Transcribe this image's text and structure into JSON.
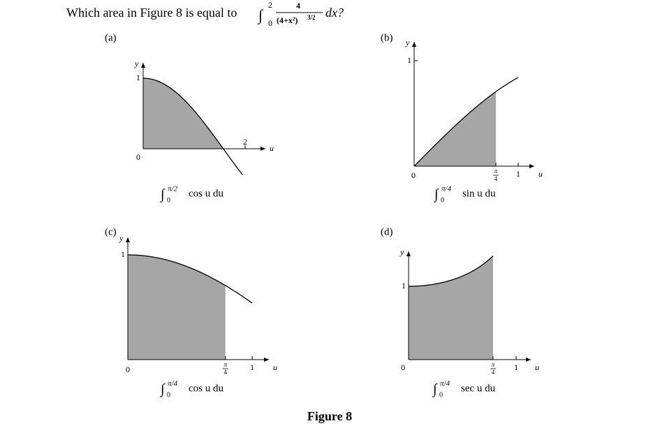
{
  "question": {
    "text": "Which area in Figure 8 is equal to",
    "integral": {
      "sign": "∫",
      "lower": "0",
      "upper": "2",
      "numerator": "4",
      "denominator": "(4+x²)",
      "exponent": "3/2",
      "differential": "dx?"
    }
  },
  "panels": [
    {
      "label": "(a)",
      "y_axis": "y",
      "x_axis": "u",
      "origin": "0",
      "y_tick": "1",
      "x_ticks": [
        {
          "label": "2"
        }
      ],
      "caption": {
        "sign": "∫",
        "lower": "0",
        "upper": "π/2",
        "integrand": "cos u du"
      }
    },
    {
      "label": "(b)",
      "y_axis": "y",
      "x_axis": "u",
      "origin": "0",
      "y_tick": "1",
      "x_ticks": [
        {
          "num": "π",
          "den": "4"
        },
        {
          "label": "1"
        }
      ],
      "caption": {
        "sign": "∫",
        "lower": "0",
        "upper": "π/4",
        "integrand": "sin u du"
      }
    },
    {
      "label": "(c)",
      "y_axis": "y",
      "x_axis": "u",
      "origin": "0",
      "y_tick": "1",
      "x_ticks": [
        {
          "num": "π",
          "den": "4"
        },
        {
          "label": "1"
        }
      ],
      "caption": {
        "sign": "∫",
        "lower": "0",
        "upper": "π/4",
        "integrand": "cos u du"
      }
    },
    {
      "label": "(d)",
      "y_axis": "y",
      "x_axis": "u",
      "origin": "0",
      "y_tick": "1",
      "x_ticks": [
        {
          "num": "π",
          "den": "4"
        },
        {
          "label": "1"
        }
      ],
      "caption": {
        "sign": "∫",
        "lower": "0",
        "upper": "π/4",
        "integrand": "sec u du"
      }
    }
  ],
  "figure_caption": "Figure 8"
}
